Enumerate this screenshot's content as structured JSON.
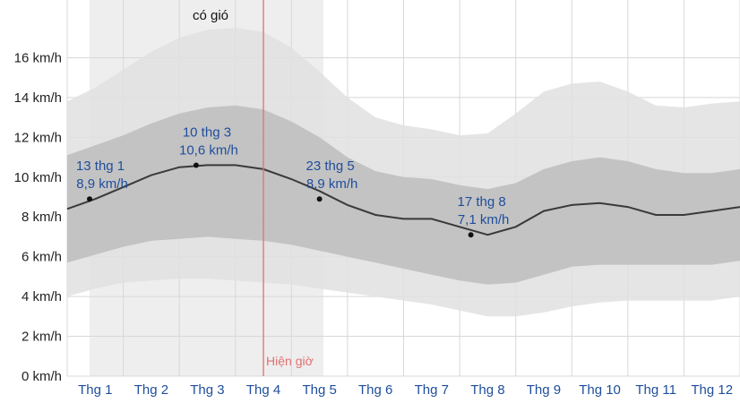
{
  "chart_data": {
    "type": "area",
    "categories": [
      "Thg 1",
      "Thg 2",
      "Thg 3",
      "Thg 4",
      "Thg 5",
      "Thg 6",
      "Thg 7",
      "Thg 8",
      "Thg 9",
      "Thg 10",
      "Thg 11",
      "Thg 12"
    ],
    "yticks": [
      "0 km/h",
      "2 km/h",
      "4 km/h",
      "6 km/h",
      "8 km/h",
      "10 km/h",
      "12 km/h",
      "14 km/h",
      "16 km/h"
    ],
    "ylim": [
      0,
      18
    ],
    "xlim": [
      0.5,
      12.5
    ],
    "grid": true,
    "x": [
      0.5,
      1.0,
      1.5,
      2.0,
      2.5,
      3.0,
      3.5,
      4.0,
      4.5,
      5.0,
      5.5,
      6.0,
      6.5,
      7.0,
      7.5,
      8.0,
      8.5,
      9.0,
      9.5,
      10.0,
      10.5,
      11.0,
      11.5,
      12.0,
      12.5
    ],
    "series": [
      {
        "role": "p10",
        "values": [
          4.0,
          4.4,
          4.7,
          4.8,
          4.9,
          4.9,
          4.8,
          4.7,
          4.6,
          4.4,
          4.2,
          4.0,
          3.8,
          3.6,
          3.3,
          3.0,
          3.0,
          3.2,
          3.5,
          3.7,
          3.8,
          3.8,
          3.8,
          3.8,
          4.0
        ]
      },
      {
        "role": "p25",
        "values": [
          5.7,
          6.1,
          6.5,
          6.8,
          6.9,
          7.0,
          6.9,
          6.8,
          6.6,
          6.3,
          6.0,
          5.7,
          5.4,
          5.1,
          4.8,
          4.6,
          4.7,
          5.1,
          5.5,
          5.6,
          5.6,
          5.6,
          5.6,
          5.6,
          5.8
        ]
      },
      {
        "role": "median",
        "values": [
          8.4,
          8.9,
          9.5,
          10.1,
          10.5,
          10.6,
          10.6,
          10.4,
          9.9,
          9.3,
          8.6,
          8.1,
          7.9,
          7.9,
          7.5,
          7.1,
          7.5,
          8.3,
          8.6,
          8.7,
          8.5,
          8.1,
          8.1,
          8.3,
          8.5
        ]
      },
      {
        "role": "p75",
        "values": [
          11.1,
          11.6,
          12.1,
          12.7,
          13.2,
          13.5,
          13.6,
          13.4,
          12.8,
          12.0,
          11.0,
          10.3,
          10.0,
          9.9,
          9.6,
          9.4,
          9.7,
          10.4,
          10.8,
          11.0,
          10.8,
          10.4,
          10.2,
          10.2,
          10.4
        ]
      },
      {
        "role": "p90",
        "values": [
          13.8,
          14.5,
          15.4,
          16.3,
          17.0,
          17.4,
          17.5,
          17.3,
          16.5,
          15.3,
          14.0,
          13.0,
          12.6,
          12.4,
          12.1,
          12.2,
          13.2,
          14.3,
          14.7,
          14.8,
          14.3,
          13.6,
          13.5,
          13.7,
          13.8
        ]
      }
    ],
    "colors": {
      "band_outer": "#e0e0e0",
      "band_inner": "#bdbdbd",
      "median_line": "#3a3a3a",
      "season_shade": "#eeeeee",
      "now_line": "#e07070",
      "annotation_text": "#1f4e9c"
    },
    "season": {
      "label": "có gió",
      "from": 0.9,
      "to": 5.07
    },
    "now": {
      "label": "Hiện giờ",
      "x": 4.0
    },
    "annotations": [
      {
        "date": "13 thg 1",
        "value_label": "8,9 km/h",
        "x": 0.9,
        "y": 8.9
      },
      {
        "date": "10 thg 3",
        "value_label": "10,6 km/h",
        "x": 2.8,
        "y": 10.6
      },
      {
        "date": "23 thg 5",
        "value_label": "8,9 km/h",
        "x": 5.0,
        "y": 8.9
      },
      {
        "date": "17 thg 8",
        "value_label": "7,1 km/h",
        "x": 7.7,
        "y": 7.1
      }
    ]
  }
}
